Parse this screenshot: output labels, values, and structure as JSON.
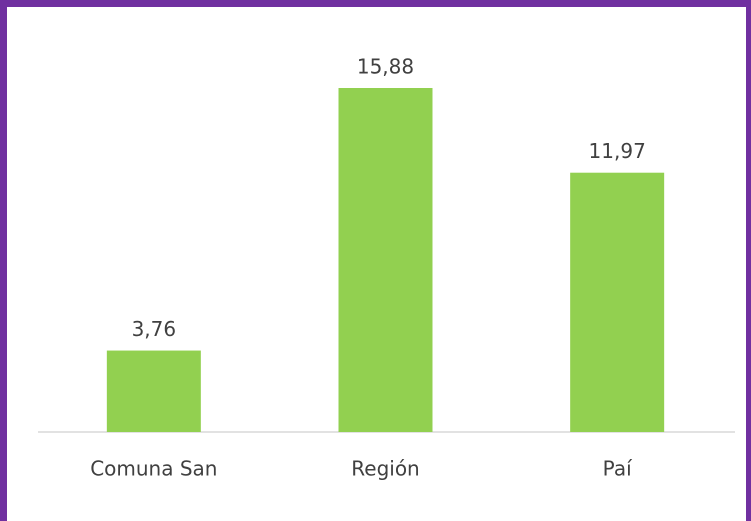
{
  "chart_data": {
    "type": "bar",
    "categories": [
      "Comuna San",
      "Región",
      "Paí"
    ],
    "values": [
      3.76,
      15.88,
      11.97
    ],
    "value_labels": [
      "3,76",
      "15,88",
      "11,97"
    ],
    "color": "#92d050"
  }
}
